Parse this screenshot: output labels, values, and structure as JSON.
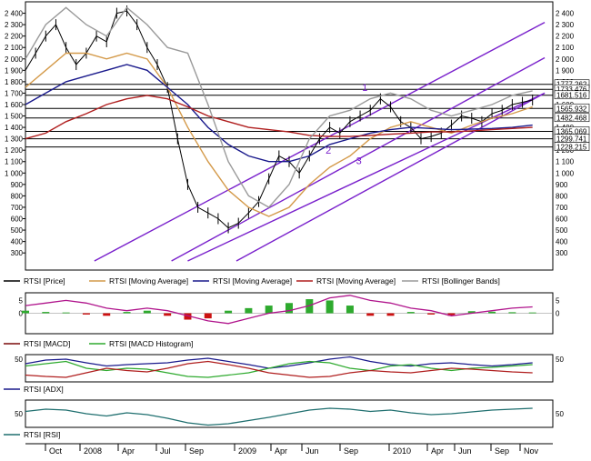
{
  "colors": {
    "price": "#000000",
    "ma_orange": "#d49a4a",
    "ma_blue": "#1a1a8c",
    "ma_red": "#b01e1e",
    "bollinger": "#9a9a9a",
    "channel": "#7a22cc",
    "level": "#000000",
    "macd_line": "#7a0a0a",
    "macd_signal": "#b0148c",
    "hist_pos": "#2eaa2e",
    "hist_neg": "#cc1111",
    "adx_main": "#1a1a8c",
    "adx_plus": "#2eaa2e",
    "adx_minus": "#b01e1e",
    "rsi": "#1f6f6f",
    "label_box": "#ffffff"
  },
  "chart_data": [
    {
      "type": "line",
      "panel": "price",
      "ylim": [
        150,
        2500
      ],
      "yticks": [
        300,
        400,
        500,
        600,
        700,
        800,
        900,
        1000,
        1100,
        1200,
        1300,
        1400,
        1500,
        1600,
        1700,
        1800,
        1900,
        2000,
        2100,
        2200,
        2300,
        2400
      ],
      "ytick_labels": [
        "300",
        "400",
        "500",
        "600",
        "700",
        "800",
        "900",
        "1 000",
        "1 100",
        "1 200",
        "1 300",
        "1 400",
        "1 500",
        "1 600",
        "1 700",
        "1 800",
        "1 900",
        "2 000",
        "2 100",
        "2 200",
        "2 300",
        "2 400"
      ],
      "x_month_index": [
        0,
        26
      ],
      "level_labels": [
        {
          "value": 1777.262,
          "label": "1777.262"
        },
        {
          "value": 1733.476,
          "label": "1733.476"
        },
        {
          "value": 1681.516,
          "label": "1681.516"
        },
        {
          "value": 1565.932,
          "label": "1565.932"
        },
        {
          "value": 1482.468,
          "label": "1482.468"
        },
        {
          "value": 1365.069,
          "label": "1365.069"
        },
        {
          "value": 1299.741,
          "label": "1299.741"
        },
        {
          "value": 1228.215,
          "label": "1228.215"
        }
      ],
      "channel_labels": [
        "1",
        "2",
        "3"
      ],
      "channel_lines": [
        {
          "label": "1",
          "x": [
            3.4,
            25.6
          ],
          "y": [
            230,
            2320
          ]
        },
        {
          "label": "2",
          "x": [
            7.2,
            25.6
          ],
          "y": [
            230,
            2010
          ]
        },
        {
          "label": "3",
          "x": [
            10.4,
            25.6
          ],
          "y": [
            230,
            1700
          ]
        },
        {
          "label": "",
          "x": [
            8.0,
            25.6
          ],
          "y": [
            230,
            1700
          ]
        }
      ],
      "series": [
        {
          "name": "RTSI [Price]",
          "kind": "price",
          "x": [
            0,
            0.5,
            1,
            1.5,
            2,
            2.5,
            3,
            3.5,
            4,
            4.5,
            5,
            5.5,
            6,
            6.5,
            7,
            7.5,
            8,
            8.5,
            9,
            9.5,
            10,
            10.5,
            11,
            11.5,
            12,
            12.5,
            13,
            13.5,
            14,
            14.5,
            15,
            15.5,
            16,
            16.5,
            17,
            17.5,
            18,
            18.5,
            19,
            19.5,
            20,
            20.5,
            21,
            21.5,
            22,
            22.5,
            23,
            23.5,
            24,
            24.5,
            25
          ],
          "y": [
            1900,
            2050,
            2200,
            2300,
            2100,
            1950,
            2050,
            2200,
            2150,
            2400,
            2420,
            2300,
            2100,
            1950,
            1750,
            1300,
            900,
            700,
            650,
            600,
            520,
            560,
            650,
            750,
            950,
            1150,
            1100,
            1000,
            1150,
            1300,
            1400,
            1350,
            1450,
            1500,
            1550,
            1650,
            1580,
            1450,
            1400,
            1300,
            1320,
            1350,
            1420,
            1500,
            1480,
            1450,
            1520,
            1550,
            1600,
            1620,
            1640
          ]
        },
        {
          "name": "RTSI [Moving Average]",
          "kind": "ma_orange",
          "x": [
            0,
            1,
            2,
            3,
            4,
            5,
            6,
            7,
            8,
            9,
            10,
            11,
            12,
            13,
            14,
            15,
            16,
            17,
            18,
            19,
            20,
            21,
            22,
            23,
            24,
            25
          ],
          "y": [
            1750,
            1900,
            2050,
            2050,
            2000,
            2050,
            2000,
            1750,
            1400,
            1100,
            850,
            700,
            620,
            700,
            900,
            1050,
            1150,
            1300,
            1400,
            1450,
            1400,
            1350,
            1420,
            1480,
            1520,
            1580
          ]
        },
        {
          "name": "RTSI [Moving Average]",
          "kind": "ma_blue",
          "x": [
            0,
            1,
            2,
            3,
            4,
            5,
            6,
            7,
            8,
            9,
            10,
            11,
            12,
            13,
            14,
            15,
            16,
            17,
            18,
            19,
            20,
            21,
            22,
            23,
            24,
            25
          ],
          "y": [
            1600,
            1700,
            1800,
            1850,
            1900,
            1950,
            1900,
            1750,
            1600,
            1400,
            1250,
            1150,
            1100,
            1100,
            1150,
            1250,
            1300,
            1350,
            1380,
            1400,
            1390,
            1380,
            1385,
            1390,
            1400,
            1420
          ]
        },
        {
          "name": "RTSI [Moving Average]",
          "kind": "ma_red",
          "x": [
            0,
            1,
            2,
            3,
            4,
            5,
            6,
            7,
            8,
            9,
            10,
            11,
            12,
            13,
            14,
            15,
            16,
            17,
            18,
            19,
            20,
            21,
            22,
            23,
            24,
            25
          ],
          "y": [
            1300,
            1350,
            1450,
            1520,
            1600,
            1650,
            1680,
            1650,
            1580,
            1500,
            1450,
            1400,
            1380,
            1360,
            1330,
            1320,
            1320,
            1330,
            1340,
            1350,
            1360,
            1360,
            1370,
            1380,
            1390,
            1400
          ]
        },
        {
          "name": "RTSI [Bollinger Bands]",
          "kind": "bollinger",
          "x": [
            0,
            1,
            2,
            3,
            4,
            5,
            6,
            7,
            8,
            9,
            10,
            11,
            12,
            13,
            14,
            15,
            16,
            17,
            18,
            19,
            20,
            21,
            22,
            23,
            24,
            25
          ],
          "y": [
            2000,
            2300,
            2450,
            2300,
            2200,
            2450,
            2300,
            2100,
            2050,
            1600,
            1100,
            800,
            700,
            900,
            1300,
            1500,
            1550,
            1650,
            1700,
            1650,
            1550,
            1500,
            1550,
            1600,
            1680,
            1720
          ]
        }
      ]
    },
    {
      "type": "bar",
      "panel": "macd",
      "ylim": [
        -8,
        8
      ],
      "yticks": [
        0,
        5
      ],
      "ytick_labels": [
        "0",
        "5"
      ],
      "x": [
        0,
        1,
        2,
        3,
        4,
        5,
        6,
        7,
        8,
        9,
        10,
        11,
        12,
        13,
        14,
        15,
        16,
        17,
        18,
        19,
        20,
        21,
        22,
        23,
        24,
        25
      ],
      "series": [
        {
          "name": "RTSI [MACD]",
          "kind": "macd_line",
          "values": [
            3,
            4,
            5,
            4,
            2,
            1,
            2,
            1,
            -1,
            -3,
            -4,
            -2,
            0,
            1,
            3,
            6,
            7,
            5,
            4,
            2,
            1,
            -1,
            0,
            1,
            2,
            2.5
          ]
        },
        {
          "name": "RTSI [MACD Histogram]",
          "kind": "hist",
          "values": [
            1,
            0.5,
            0.3,
            -0.5,
            -1,
            0.5,
            1,
            -1,
            -2.5,
            -2,
            1,
            2,
            3,
            4,
            5.5,
            5,
            3,
            -1,
            -1,
            0.5,
            -0.5,
            -1,
            0.8,
            0.6,
            0.4,
            0.3
          ]
        }
      ]
    },
    {
      "type": "line",
      "panel": "adx",
      "ylim": [
        0,
        60
      ],
      "yticks": [
        10,
        50
      ],
      "ytick_labels": [
        "",
        "50"
      ],
      "x": [
        0,
        1,
        2,
        3,
        4,
        5,
        6,
        7,
        8,
        9,
        10,
        11,
        12,
        13,
        14,
        15,
        16,
        17,
        18,
        19,
        20,
        21,
        22,
        23,
        24,
        25
      ],
      "series": [
        {
          "name": "RTSI [ADX]",
          "kind": "adx_main",
          "values": [
            40,
            48,
            50,
            42,
            35,
            38,
            40,
            42,
            48,
            52,
            45,
            38,
            30,
            35,
            42,
            50,
            55,
            45,
            38,
            35,
            40,
            42,
            38,
            35,
            38,
            42
          ]
        },
        {
          "name": "",
          "kind": "adx_plus",
          "values": [
            35,
            40,
            45,
            30,
            25,
            30,
            28,
            20,
            12,
            10,
            15,
            20,
            30,
            40,
            45,
            42,
            30,
            25,
            35,
            38,
            30,
            25,
            30,
            32,
            35,
            38
          ]
        },
        {
          "name": "",
          "kind": "adx_minus",
          "values": [
            15,
            12,
            10,
            20,
            30,
            25,
            22,
            30,
            40,
            45,
            38,
            30,
            20,
            15,
            10,
            12,
            20,
            25,
            22,
            20,
            25,
            30,
            28,
            25,
            22,
            20
          ]
        }
      ]
    },
    {
      "type": "line",
      "panel": "rsi",
      "ylim": [
        20,
        80
      ],
      "yticks": [
        50
      ],
      "ytick_labels": [
        "50"
      ],
      "x": [
        0,
        1,
        2,
        3,
        4,
        5,
        6,
        7,
        8,
        9,
        10,
        11,
        12,
        13,
        14,
        15,
        16,
        17,
        18,
        19,
        20,
        21,
        22,
        23,
        24,
        25
      ],
      "series": [
        {
          "name": "RTSI [RSI]",
          "kind": "rsi",
          "values": [
            55,
            60,
            58,
            50,
            45,
            52,
            48,
            40,
            30,
            25,
            28,
            35,
            42,
            50,
            58,
            62,
            60,
            55,
            58,
            52,
            48,
            50,
            54,
            58,
            60,
            62
          ]
        }
      ]
    }
  ],
  "x_axis": {
    "labels": [
      "Oct",
      "2008",
      "Apr",
      "Jul",
      "Sep",
      "2009",
      "Apr",
      "Jun",
      "Sep",
      "2010",
      "Apr",
      "Jun",
      "Sep",
      "Nov"
    ],
    "label_month_index": [
      0.8,
      2.6,
      5.2,
      7.6,
      10.2,
      12.6,
      15.2,
      17.6,
      20.2,
      22.6,
      25.2,
      27.6,
      30.2,
      32.6
    ]
  },
  "legends": {
    "price": [
      "RTSI [Price]",
      "RTSI [Moving Average]",
      "RTSI [Moving Average]",
      "RTSI [Moving Average]",
      "RTSI [Bollinger Bands]"
    ],
    "macd": [
      "RTSI [MACD]",
      "RTSI [MACD Histogram]"
    ],
    "adx": [
      "RTSI [ADX]"
    ],
    "rsi": [
      "RTSI [RSI]"
    ]
  }
}
